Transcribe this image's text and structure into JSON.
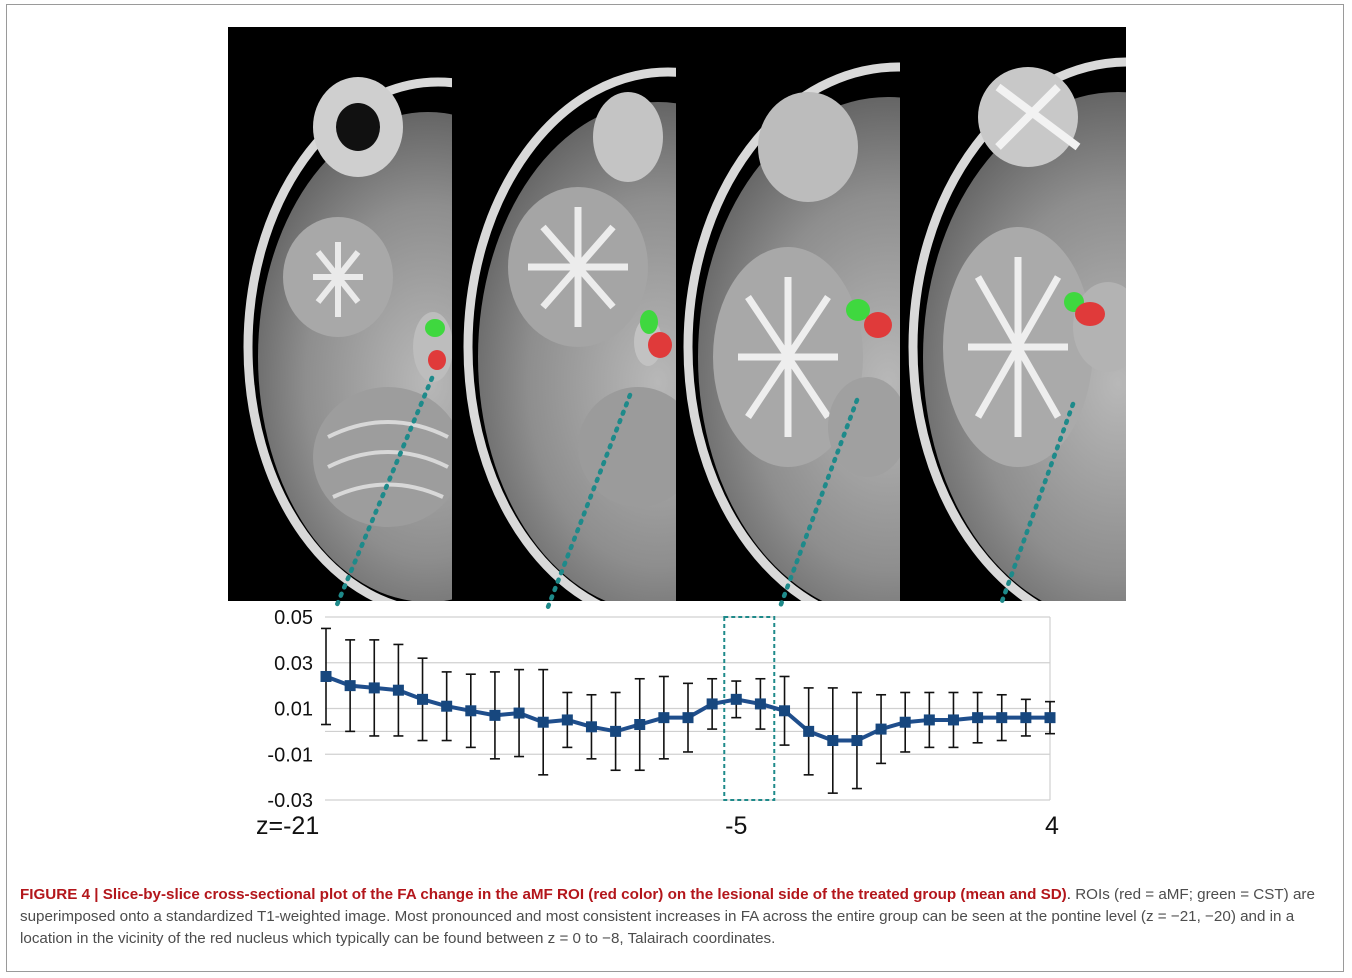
{
  "figure": {
    "caption_title": "FIGURE 4 | Slice-by-slice cross-sectional plot of the FA change in the aMF ROI (red color) on the lesional side of the treated group (mean and SD)",
    "caption_title_end": ".",
    "caption_body": "ROIs (red = aMF; green = CST) are superimposed onto a standardized T1-weighted image. Most pronounced and most consistent increases in FA across the entire group can be seen at the pontine level (z = −21, −20) and in a location in the vicinity of the red nucleus which typically can be found between z = 0 to −8, Talairach coordinates."
  },
  "colors": {
    "line": "#1f4e8c",
    "marker": "#17477e",
    "error_bar": "#111111",
    "gridline": "#d0d0d0",
    "dotted_connector": "#1e8a8a",
    "roi_amf": "#e03a3a",
    "roi_cst": "#3fd83f",
    "caption_title": "#b3161b"
  },
  "chart_data": {
    "type": "line",
    "ylim": [
      -0.03,
      0.05
    ],
    "y_ticks": [
      "0.05",
      "0.03",
      "0.01",
      "-0.01",
      "-0.03"
    ],
    "x_range": [
      -21,
      4
    ],
    "x_tick_labels": [
      {
        "x": -21,
        "label": "z=-21"
      },
      {
        "x": -5,
        "label": "-5"
      },
      {
        "x": 4,
        "label": "4"
      }
    ],
    "grid": true,
    "highlight_slice": -5,
    "series": [
      {
        "x": [
          -21,
          -20,
          -19,
          -18,
          -17,
          -16,
          -15,
          -14,
          -13,
          -12,
          -11,
          -10,
          -9,
          -8,
          -7,
          -6,
          -5,
          -4,
          -3,
          -2,
          -1,
          0,
          1,
          2,
          3,
          4
        ],
        "mean": [
          0.024,
          0.02,
          0.019,
          0.018,
          0.014,
          0.011,
          0.009,
          0.007,
          0.008,
          0.004,
          0.005,
          0.002,
          0.0,
          0.003,
          0.006,
          0.006,
          0.012,
          0.014,
          0.012,
          0.009,
          0.0,
          -0.004,
          -0.004,
          0.001,
          0.004,
          0.005
        ],
        "sd": [
          0.021,
          0.02,
          0.021,
          0.02,
          0.018,
          0.015,
          0.016,
          0.019,
          0.019,
          0.023,
          0.012,
          0.014,
          0.017,
          0.02,
          0.018,
          0.015,
          0.011,
          0.008,
          0.011,
          0.015,
          0.019,
          0.023,
          0.021,
          0.015,
          0.013,
          0.012
        ]
      }
    ],
    "extra_points": {
      "x": [
        5,
        6,
        7,
        8,
        9
      ],
      "mean": [
        0.005,
        0.006,
        0.006,
        0.006,
        0.006
      ],
      "sd": [
        0.012,
        0.011,
        0.01,
        0.008,
        0.007
      ]
    }
  }
}
